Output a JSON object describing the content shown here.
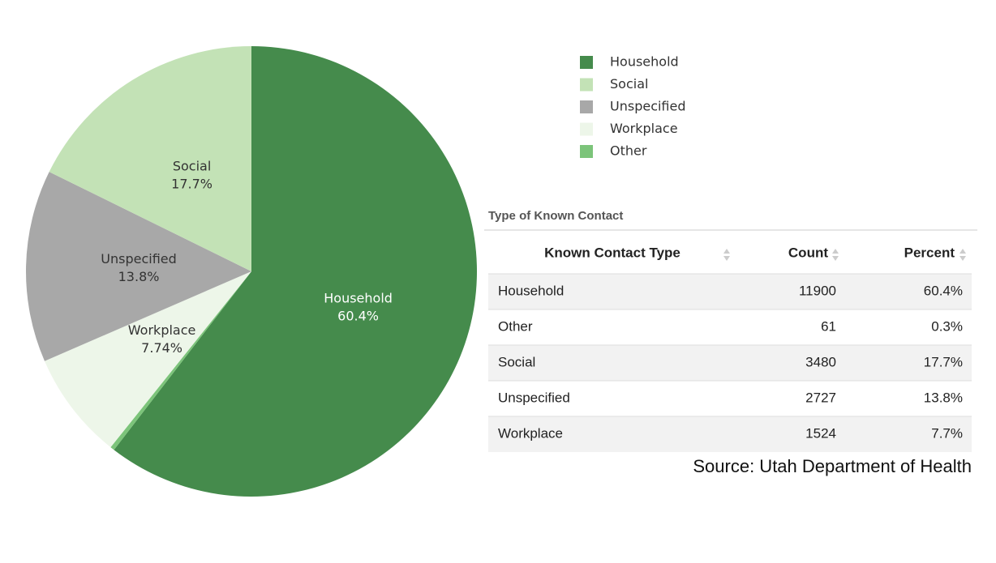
{
  "chart_data": {
    "type": "pie",
    "categories": [
      "Household",
      "Other",
      "Workplace",
      "Unspecified",
      "Social"
    ],
    "values": [
      60.4,
      0.3,
      7.74,
      13.8,
      17.7
    ],
    "value_labels": [
      "60.4%",
      null,
      "7.74%",
      "13.8%",
      "17.7%"
    ],
    "colors": [
      "#458b4c",
      "#7cc47a",
      "#edf6e9",
      "#a8a8a8",
      "#c3e2b6"
    ],
    "legend": "top-right"
  },
  "table": {
    "title": "Type of Known Contact",
    "columns": [
      "Known Contact Type",
      "Count",
      "Percent"
    ],
    "rows": [
      [
        "Household",
        "11900",
        "60.4%"
      ],
      [
        "Other",
        "61",
        "0.3%"
      ],
      [
        "Social",
        "3480",
        "17.7%"
      ],
      [
        "Unspecified",
        "2727",
        "13.8%"
      ],
      [
        "Workplace",
        "1524",
        "7.7%"
      ]
    ]
  },
  "source": "Source: Utah Department of Health"
}
